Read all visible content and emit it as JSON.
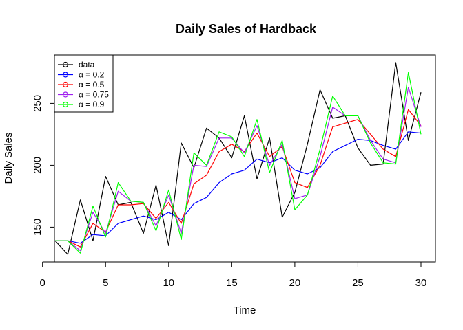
{
  "chart_data": {
    "type": "line",
    "title": "Daily Sales of Hardback",
    "xlabel": "Time",
    "ylabel": "Daily Sales",
    "xlim": [
      1,
      30
    ],
    "ylim": [
      128,
      283
    ],
    "x_ticks": [
      0,
      5,
      10,
      15,
      20,
      25,
      30
    ],
    "y_ticks": [
      150,
      200,
      250
    ],
    "grid": false,
    "legend_position": "top-left",
    "x": [
      1,
      2,
      3,
      4,
      5,
      6,
      7,
      8,
      9,
      10,
      11,
      12,
      13,
      14,
      15,
      16,
      17,
      18,
      19,
      20,
      21,
      22,
      23,
      24,
      25,
      26,
      27,
      28,
      29,
      30
    ],
    "series": [
      {
        "name": "data",
        "color": "#000000",
        "values": [
          139,
          128,
          172,
          139,
          191,
          168,
          170,
          145,
          184,
          135,
          218,
          198,
          230,
          222,
          206,
          240,
          189,
          222,
          158,
          178,
          217,
          261,
          238,
          240,
          214,
          200,
          201,
          283,
          220,
          259
        ]
      },
      {
        "name": "α = 0.2",
        "color": "#0000ff",
        "values": [
          139,
          139,
          137,
          144,
          143,
          153,
          156,
          159,
          156,
          162,
          156,
          169,
          174,
          186,
          193,
          196,
          205,
          202,
          206,
          196,
          193,
          198,
          211,
          216,
          221,
          220,
          216,
          213,
          227,
          226
        ]
      },
      {
        "name": "α = 0.5",
        "color": "#ff0000",
        "values": [
          139,
          139,
          134,
          153,
          146,
          168,
          168,
          169,
          157,
          170,
          153,
          185,
          192,
          211,
          217,
          211,
          226,
          207,
          215,
          186,
          182,
          200,
          231,
          234,
          237,
          225,
          213,
          207,
          245,
          232
        ]
      },
      {
        "name": "α = 0.75",
        "color": "#a020f0",
        "values": [
          139,
          139,
          131,
          162,
          145,
          179,
          171,
          170,
          151,
          176,
          145,
          200,
          199,
          222,
          222,
          210,
          232,
          200,
          217,
          173,
          176,
          207,
          247,
          240,
          240,
          220,
          205,
          202,
          263,
          231
        ]
      },
      {
        "name": "α = 0.9",
        "color": "#00ff00",
        "values": [
          139,
          139,
          129,
          167,
          142,
          186,
          171,
          170,
          147,
          180,
          140,
          210,
          200,
          227,
          223,
          207,
          237,
          194,
          220,
          164,
          176,
          213,
          256,
          240,
          240,
          218,
          202,
          201,
          275,
          225
        ]
      }
    ]
  }
}
